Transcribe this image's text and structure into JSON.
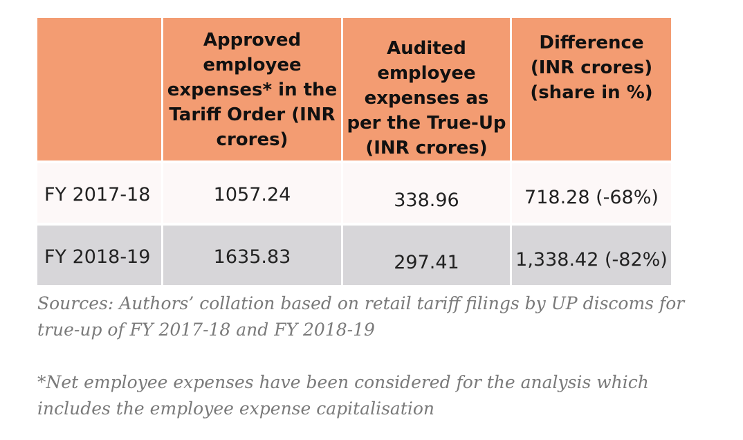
{
  "table": {
    "headers": [
      "",
      "Approved employee expenses* in the Tariff Order (INR crores)",
      "Audited employee expenses as per the True-Up (INR crores)",
      "Difference (INR crores) (share in %)"
    ],
    "rows": [
      {
        "year": "FY 2017-18",
        "approved": "1057.24",
        "audited": "338.96",
        "difference": "718.28 (-68%)"
      },
      {
        "year": "FY 2018-19",
        "approved": "1635.83",
        "audited": "297.41",
        "difference": "1,338.42 (-82%)"
      }
    ]
  },
  "sources": "Sources: Authors’ collation based on retail tariff filings by UP discoms for true-up of FY 2017-18 and FY 2018-19",
  "footnote": "*Net employee expenses have been considered for the analysis which includes the employee expense capitalisation",
  "colors": {
    "header_bg": "#f39c72",
    "row_light": "#fdf8f8",
    "row_grey": "#d7d6d9",
    "note_text": "#7a7a7a"
  }
}
